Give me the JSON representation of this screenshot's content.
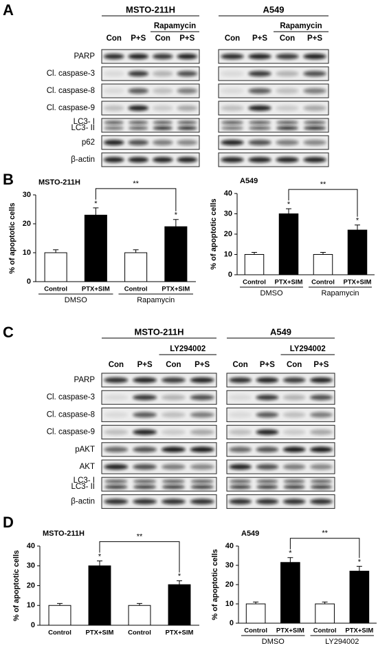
{
  "panel_labels": [
    "A",
    "B",
    "C",
    "D"
  ],
  "blots": [
    {
      "panel": "A",
      "rows": [
        "PARP",
        "Cl. caspase-3",
        "Cl. caspase-8",
        "Cl. caspase-9",
        [
          "LC3- I",
          "LC3- II"
        ],
        "p62",
        "β-actin"
      ],
      "groups": [
        {
          "cell_line": "MSTO-211H",
          "treatment": "Rapamycin",
          "lanes": [
            "Con",
            "P+S",
            "Con",
            "P+S"
          ]
        },
        {
          "cell_line": "A549",
          "treatment": "Rapamycin",
          "lanes": [
            "Con",
            "P+S",
            "Con",
            "P+S"
          ]
        }
      ]
    },
    {
      "panel": "C",
      "rows": [
        "PARP",
        "Cl. caspase-3",
        "Cl. caspase-8",
        "Cl. caspase-9",
        "pAKT",
        "AKT",
        [
          "LC3- I",
          "LC3- II"
        ],
        "β-actin"
      ],
      "groups": [
        {
          "cell_line": "MSTO-211H",
          "treatment": "LY294002",
          "lanes": [
            "Con",
            "P+S",
            "Con",
            "P+S"
          ]
        },
        {
          "cell_line": "A549",
          "treatment": "LY294002",
          "lanes": [
            "Con",
            "P+S",
            "Con",
            "P+S"
          ]
        }
      ]
    }
  ],
  "chart_data": [
    {
      "type": "bar",
      "title": "MSTO-211H",
      "ylabel": "% of apoptotic cells",
      "categories": [
        "Control",
        "PTX+SIM",
        "Control",
        "PTX+SIM"
      ],
      "groups": [
        "DMSO",
        "Rapamycin"
      ],
      "values": [
        10,
        23,
        10,
        19
      ],
      "errors": [
        1,
        2.5,
        1,
        2.5
      ],
      "colors": [
        "#ffffff",
        "#000000",
        "#ffffff",
        "#000000"
      ],
      "bar_labels": [
        null,
        "*",
        null,
        "*"
      ],
      "bracket_label": "**",
      "ylim": [
        0,
        30
      ],
      "yticks": [
        0,
        10,
        20,
        30
      ]
    },
    {
      "type": "bar",
      "title": "A549",
      "ylabel": "% of apoptotic cells",
      "categories": [
        "Control",
        "PTX+SIM",
        "Control",
        "PTX+SIM"
      ],
      "groups": [
        "DMSO",
        "Rapamycin"
      ],
      "values": [
        10,
        30,
        10,
        22
      ],
      "errors": [
        1,
        2.5,
        1,
        2.5
      ],
      "colors": [
        "#ffffff",
        "#000000",
        "#ffffff",
        "#000000"
      ],
      "bar_labels": [
        null,
        "*",
        null,
        "*"
      ],
      "bracket_label": "**",
      "ylim": [
        0,
        40
      ],
      "yticks": [
        0,
        10,
        20,
        30,
        40
      ]
    },
    {
      "type": "bar",
      "title": "MSTO-211H",
      "ylabel": "% of apoptotic cells",
      "categories": [
        "Control",
        "PTX+SIM",
        "Control",
        "PTX+SIM"
      ],
      "values": [
        10,
        30,
        10,
        20.5
      ],
      "errors": [
        1,
        2.5,
        1,
        2
      ],
      "colors": [
        "#ffffff",
        "#000000",
        "#ffffff",
        "#000000"
      ],
      "bar_labels": [
        null,
        "*",
        null,
        "*"
      ],
      "bracket_label": "**",
      "ylim": [
        0,
        40
      ],
      "yticks": [
        0,
        10,
        20,
        30,
        40
      ]
    },
    {
      "type": "bar",
      "title": "A549",
      "ylabel": "% of apoptotic cells",
      "categories": [
        "Control",
        "PTX+SIM",
        "Control",
        "PTX+SIM"
      ],
      "groups": [
        "DMSO",
        "LY294002"
      ],
      "values": [
        10,
        31.5,
        10,
        27
      ],
      "errors": [
        1,
        2.5,
        1,
        2.5
      ],
      "colors": [
        "#ffffff",
        "#000000",
        "#ffffff",
        "#000000"
      ],
      "bar_labels": [
        null,
        "*",
        null,
        "*"
      ],
      "bracket_label": "**",
      "ylim": [
        0,
        40
      ],
      "yticks": [
        0,
        10,
        20,
        30,
        40
      ]
    }
  ]
}
